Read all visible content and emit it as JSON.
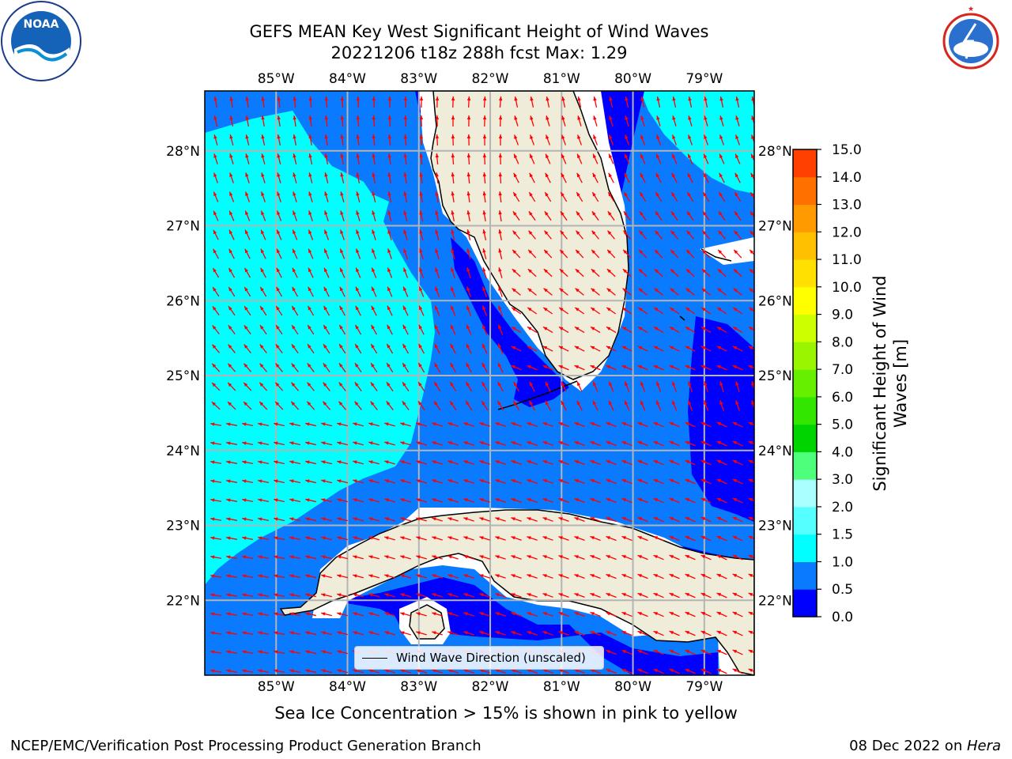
{
  "title": {
    "line1": "GEFS MEAN Key West Significant Height of Wind Waves",
    "line2": "20221206 t18z 288h fcst   Max: 1.29"
  },
  "map": {
    "lon_labels": [
      "85°W",
      "84°W",
      "83°W",
      "82°W",
      "81°W",
      "80°W",
      "79°W"
    ],
    "lon_values": [
      -85,
      -84,
      -83,
      -82,
      -81,
      -80,
      -79
    ],
    "lat_labels": [
      "22°N",
      "23°N",
      "24°N",
      "25°N",
      "26°N",
      "27°N",
      "28°N"
    ],
    "lat_values": [
      22,
      23,
      24,
      25,
      26,
      27,
      28
    ],
    "lon_range": [
      -86.0,
      -78.3
    ],
    "lat_range": [
      21.0,
      28.8
    ],
    "colors": {
      "land": "#efedda",
      "coast": "#000000",
      "grid": "#b4b4b4",
      "arrow": "#ff0000",
      "wave_0_0.5": "#0000ff",
      "wave_0.5_1.0": "#0a7aff",
      "wave_1.0_1.5": "#00ffff"
    }
  },
  "colorbar": {
    "label_line1": "Significant Height of Wind",
    "label_line2": "Waves [m]",
    "ticks": [
      "15.0",
      "14.0",
      "13.0",
      "12.0",
      "11.0",
      "10.0",
      "9.0",
      "8.0",
      "7.0",
      "6.0",
      "5.0",
      "4.0",
      "3.0",
      "2.0",
      "1.5",
      "1.0",
      "0.5",
      "0.0"
    ],
    "levels": [
      0.0,
      0.5,
      1.0,
      1.5,
      2.0,
      3.0,
      4.0,
      5.0,
      6.0,
      7.0,
      8.0,
      9.0,
      10.0,
      11.0,
      12.0,
      13.0,
      14.0,
      15.0
    ],
    "colors": [
      "#0000ff",
      "#0a7aff",
      "#00ffff",
      "#55ffff",
      "#aaffff",
      "#4dff7a",
      "#00d400",
      "#33e600",
      "#66f000",
      "#99f500",
      "#ccff00",
      "#ffff00",
      "#ffe000",
      "#ffc000",
      "#ff9a00",
      "#ff7000",
      "#ff4000",
      "#ff0000"
    ]
  },
  "legend": {
    "text": "Wind Wave Direction (unscaled)"
  },
  "ice_note": "Sea Ice Concentration > 15% is shown in pink to yellow",
  "footer": {
    "left": "NCEP/EMC/Verification Post Processing Product Generation Branch",
    "right_date": "08 Dec 2022 on ",
    "right_host": "Hera"
  },
  "logos": {
    "noaa": "NOAA",
    "nws": "NATIONAL WEATHER SERVICE"
  }
}
